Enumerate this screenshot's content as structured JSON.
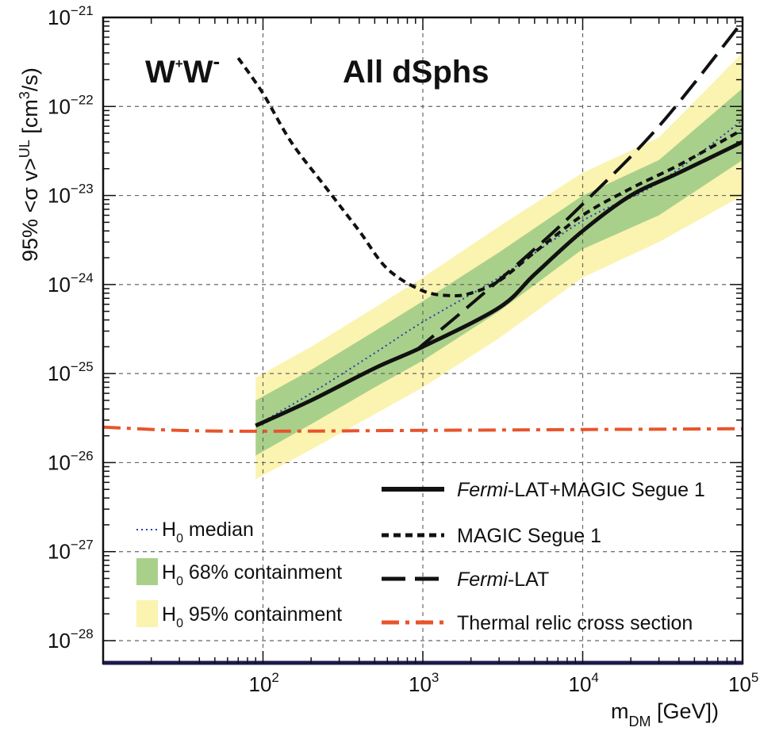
{
  "chart_data": {
    "type": "line",
    "title": "",
    "annotations": {
      "channel": {
        "base": "W",
        "sup1": "+",
        "mid": "W",
        "sup2": "-"
      },
      "sample": "All dSphs"
    },
    "xlabel": {
      "base": "m",
      "sub": "DM",
      "rest": " [GeV])"
    },
    "ylabel": {
      "prefix": "95% <σ v>",
      "sup": "UL",
      "mid": " [cm",
      "sup2": "3",
      "end": "/s)"
    },
    "x_scale": "log",
    "y_scale": "log",
    "xlim": [
      10,
      100000
    ],
    "ylim": [
      1e-28,
      1e-21
    ],
    "grid": true,
    "x_ticks": [
      {
        "value": 100,
        "base": "10",
        "exp": "2"
      },
      {
        "value": 1000,
        "base": "10",
        "exp": "3"
      },
      {
        "value": 10000,
        "base": "10",
        "exp": "4"
      },
      {
        "value": 100000,
        "base": "10",
        "exp": "5"
      }
    ],
    "y_ticks": [
      {
        "value": 1e-21,
        "base": "10",
        "exp": "−21"
      },
      {
        "value": 1e-22,
        "base": "10",
        "exp": "−22"
      },
      {
        "value": 1e-23,
        "base": "10",
        "exp": "−23"
      },
      {
        "value": 1e-24,
        "base": "10",
        "exp": "−24"
      },
      {
        "value": 1e-25,
        "base": "10",
        "exp": "−25"
      },
      {
        "value": 1e-26,
        "base": "10",
        "exp": "−26"
      },
      {
        "value": 1e-27,
        "base": "10",
        "exp": "−27"
      },
      {
        "value": 1e-28,
        "base": "10",
        "exp": "−28"
      }
    ],
    "bands": [
      {
        "name": "H0 95% containment",
        "color": "#fbf3b0",
        "x": [
          90,
          200,
          500,
          1000,
          3000,
          10000,
          30000,
          100000
        ],
        "low": [
          6.5e-27,
          1.4e-26,
          3.5e-26,
          7e-26,
          2.5e-25,
          1.2e-24,
          3e-24,
          1e-23
        ],
        "high": [
          9e-26,
          2e-25,
          5.5e-25,
          1.2e-24,
          4.5e-24,
          1.8e-23,
          4.5e-23,
          4e-22
        ]
      },
      {
        "name": "H0 68% containment",
        "color": "#a9d08a",
        "x": [
          90,
          200,
          500,
          1000,
          3000,
          10000,
          30000,
          100000
        ],
        "low": [
          1.2e-26,
          2.7e-26,
          7e-26,
          1.4e-25,
          5e-25,
          2.5e-24,
          6e-24,
          2.5e-23
        ],
        "high": [
          5e-26,
          1.1e-25,
          3e-25,
          6.5e-25,
          2.3e-24,
          1e-23,
          2.5e-23,
          1.6e-22
        ]
      }
    ],
    "series": [
      {
        "name": "H0 median",
        "style": "dotted",
        "color": "#2a3ea8",
        "x": [
          90,
          200,
          500,
          1000,
          3000,
          10000,
          30000,
          100000
        ],
        "y": [
          2.6e-26,
          6e-26,
          1.7e-25,
          3.8e-25,
          1.2e-24,
          5.2e-24,
          1.4e-23,
          7e-23
        ]
      },
      {
        "name": "Fermi-LAT+MAGIC Segue 1",
        "style": "solid",
        "color": "#111111",
        "x": [
          90,
          200,
          500,
          1000,
          3000,
          5000,
          10000,
          20000,
          40000,
          100000
        ],
        "y": [
          2.6e-26,
          5e-26,
          1.15e-25,
          2e-25,
          5.5e-25,
          1.3e-24,
          4e-24,
          1e-23,
          1.8e-23,
          4e-23
        ]
      },
      {
        "name": "MAGIC Segue 1",
        "style": "short-dash",
        "color": "#111111",
        "x": [
          70,
          100,
          150,
          250,
          400,
          600,
          1000,
          1500,
          2000,
          3000,
          5000,
          10000,
          20000,
          40000,
          100000
        ],
        "y": [
          3.5e-22,
          1.4e-22,
          4e-23,
          1.2e-23,
          4e-24,
          1.5e-24,
          8.5e-25,
          7.5e-25,
          8e-25,
          1.1e-24,
          2.3e-24,
          6e-24,
          1.2e-23,
          2.2e-23,
          5.5e-23
        ]
      },
      {
        "name": "Fermi-LAT",
        "style": "long-dash",
        "color": "#111111",
        "x": [
          900,
          2000,
          5000,
          10000,
          30000,
          100000
        ],
        "y": [
          1.8e-25,
          6e-25,
          2.5e-24,
          8e-24,
          6e-23,
          9e-22
        ]
      },
      {
        "name": "Thermal relic cross section",
        "style": "dash-dot",
        "color": "#e8542b",
        "x": [
          10,
          30,
          100,
          1000,
          10000,
          100000
        ],
        "y": [
          2.5e-26,
          2.3e-26,
          2.25e-26,
          2.3e-26,
          2.35e-26,
          2.4e-26
        ]
      }
    ],
    "legend_left": [
      {
        "label_base": "H",
        "label_sub": "0",
        "label_rest": " median",
        "kind": "dotted",
        "color": "#2a3ea8"
      },
      {
        "label_base": "H",
        "label_sub": "0",
        "label_rest": " 68% containment",
        "kind": "box",
        "color": "#a9d08a"
      },
      {
        "label_base": "H",
        "label_sub": "0",
        "label_rest": " 95% containment",
        "kind": "box",
        "color": "#fbf3b0"
      }
    ],
    "legend_right": [
      {
        "italic": "Fermi",
        "rest": "-LAT+MAGIC Segue 1",
        "kind": "solid",
        "color": "#111111"
      },
      {
        "italic": "",
        "rest": "MAGIC Segue 1",
        "kind": "short-dash",
        "color": "#111111"
      },
      {
        "italic": "Fermi",
        "rest": "-LAT",
        "kind": "long-dash",
        "color": "#111111"
      },
      {
        "italic": "",
        "rest": "Thermal relic cross section",
        "kind": "dash-dot",
        "color": "#e8542b"
      }
    ],
    "legend_placement": "bottom"
  }
}
